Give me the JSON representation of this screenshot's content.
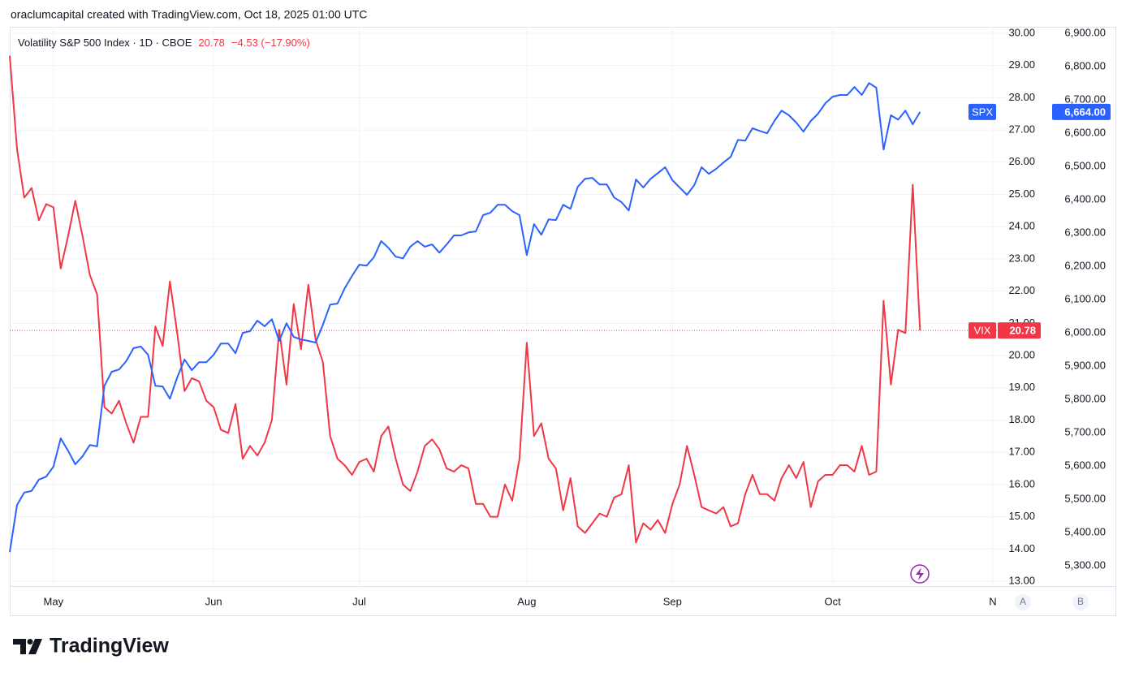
{
  "caption": "oraclumcapital created with TradingView.com, Oct 18, 2025 01:00 UTC",
  "branding": "TradingView",
  "scale_buttons": [
    "A",
    "B"
  ],
  "chart_data": {
    "type": "line",
    "title": "Volatility S&P 500 Index · 1D · CBOE",
    "subtitle": "−4.53 (−17.90%)",
    "categories": [
      null,
      null,
      null,
      null,
      null,
      null,
      "May",
      null,
      null,
      null,
      null,
      null,
      null,
      null,
      null,
      null,
      null,
      null,
      null,
      null,
      null,
      null,
      null,
      null,
      null,
      null,
      null,
      null,
      "Jun",
      null,
      null,
      null,
      null,
      null,
      null,
      null,
      null,
      null,
      null,
      null,
      null,
      null,
      null,
      null,
      null,
      null,
      null,
      null,
      "Jul",
      null,
      null,
      null,
      null,
      null,
      null,
      null,
      null,
      null,
      null,
      null,
      null,
      null,
      null,
      null,
      null,
      null,
      null,
      null,
      null,
      null,
      null,
      "Aug",
      null,
      null,
      null,
      null,
      null,
      null,
      null,
      null,
      null,
      null,
      null,
      null,
      null,
      null,
      null,
      null,
      null,
      null,
      null,
      "Sep",
      null,
      null,
      null,
      null,
      null,
      null,
      null,
      null,
      null,
      null,
      null,
      null,
      null,
      null,
      null,
      null,
      null,
      null,
      null,
      null,
      null,
      "Oct",
      null,
      null,
      null,
      null,
      null,
      null,
      null,
      null,
      null,
      null,
      null,
      null,
      null,
      null,
      null,
      null,
      null,
      null,
      null,
      null,
      null,
      "N"
    ],
    "series": [
      {
        "name": "VIX",
        "color": "#f23645",
        "axis": "y",
        "values": [
          29.3,
          26.4,
          24.9,
          25.2,
          24.2,
          24.7,
          24.6,
          22.7,
          23.7,
          24.8,
          23.7,
          22.5,
          21.9,
          18.4,
          18.2,
          18.6,
          17.9,
          17.3,
          18.1,
          18.1,
          20.9,
          20.3,
          22.3,
          20.7,
          18.9,
          19.3,
          19.2,
          18.6,
          18.4,
          17.7,
          17.6,
          18.5,
          16.8,
          17.2,
          16.9,
          17.3,
          18.0,
          20.8,
          19.1,
          21.6,
          20.2,
          22.2,
          20.5,
          19.8,
          17.5,
          16.8,
          16.6,
          16.3,
          16.7,
          16.8,
          16.4,
          17.5,
          17.8,
          16.8,
          16.0,
          15.8,
          16.4,
          17.2,
          17.4,
          17.1,
          16.5,
          16.4,
          16.6,
          16.5,
          15.4,
          15.4,
          15.0,
          15.0,
          16.0,
          15.5,
          16.8,
          20.4,
          17.5,
          17.9,
          16.8,
          16.5,
          15.2,
          16.2,
          14.7,
          14.5,
          14.8,
          15.1,
          15.0,
          15.6,
          15.7,
          16.6,
          14.2,
          14.8,
          14.6,
          14.9,
          14.5,
          15.4,
          16.0,
          17.2,
          16.3,
          15.3,
          15.2,
          15.1,
          15.3,
          14.7,
          14.8,
          15.7,
          16.3,
          15.7,
          15.7,
          15.5,
          16.2,
          16.6,
          16.2,
          16.7,
          15.3,
          16.1,
          16.3,
          16.3,
          16.6,
          16.6,
          16.4,
          17.2,
          16.3,
          16.4,
          21.7,
          19.1,
          20.8,
          20.7,
          25.3,
          20.78,
          null,
          null,
          null,
          null,
          null,
          null,
          null,
          null,
          null,
          null
        ]
      },
      {
        "name": "SPX",
        "color": "#2962ff",
        "axis": "y2",
        "values": [
          5341,
          5483,
          5520,
          5525,
          5559,
          5568,
          5598,
          5683,
          5646,
          5605,
          5629,
          5663,
          5659,
          5841,
          5883,
          5890,
          5915,
          5954,
          5959,
          5934,
          5841,
          5839,
          5802,
          5866,
          5920,
          5888,
          5912,
          5912,
          5934,
          5968,
          5968,
          5939,
          6000,
          6005,
          6037,
          6020,
          6041,
          5976,
          6029,
          5988,
          5980,
          5976,
          5971,
          6024,
          6085,
          6088,
          6134,
          6171,
          6205,
          6202,
          6227,
          6276,
          6256,
          6229,
          6224,
          6259,
          6276,
          6259,
          6266,
          6241,
          6266,
          6293,
          6293,
          6302,
          6305,
          6354,
          6361,
          6385,
          6385,
          6366,
          6354,
          6234,
          6327,
          6295,
          6341,
          6339,
          6385,
          6373,
          6439,
          6463,
          6466,
          6446,
          6446,
          6407,
          6393,
          6368,
          6461,
          6437,
          6463,
          6480,
          6498,
          6459,
          6437,
          6415,
          6444,
          6498,
          6478,
          6493,
          6512,
          6529,
          6580,
          6578,
          6615,
          6607,
          6600,
          6637,
          6668,
          6654,
          6632,
          6605,
          6637,
          6659,
          6690,
          6710,
          6715,
          6715,
          6739,
          6715,
          6751,
          6737,
          6551,
          6654,
          6641,
          6668,
          6627,
          6664,
          null,
          null,
          null,
          null,
          null,
          null,
          null,
          null,
          null,
          null
        ],
        "value_labels": [
          null,
          null,
          null,
          null,
          null,
          null,
          null,
          null,
          null,
          null,
          null,
          null,
          null,
          null,
          null,
          null,
          null,
          null,
          null,
          null,
          null,
          null,
          null,
          null,
          null,
          null,
          null,
          null,
          null,
          null,
          null,
          null,
          null,
          null,
          null,
          null,
          null,
          null,
          null,
          null,
          null,
          null,
          null,
          null,
          null,
          null,
          null,
          null,
          null,
          null,
          null,
          null,
          null,
          null,
          null,
          null,
          null,
          null,
          null,
          null,
          null,
          null,
          null,
          null,
          null,
          null,
          null,
          null,
          null,
          null,
          null,
          null,
          null,
          null,
          null,
          null,
          null,
          null,
          null,
          null,
          null,
          null,
          null,
          null,
          null,
          null,
          null,
          null,
          null,
          null,
          null,
          null,
          null,
          null,
          null,
          null,
          null,
          null,
          null,
          null,
          null,
          null,
          null,
          null,
          null,
          null,
          null,
          null,
          null,
          null,
          null,
          null,
          null,
          null,
          null,
          null,
          null,
          null,
          null,
          null,
          null,
          null,
          null,
          null,
          null,
          "6,664.00",
          null,
          null,
          null,
          null,
          null,
          null,
          null,
          null,
          null,
          null
        ]
      }
    ],
    "ylim": [
      12.85,
      30.2
    ],
    "yticks": [
      {
        "value": 13,
        "label": "13.00"
      },
      {
        "value": 14,
        "label": "14.00"
      },
      {
        "value": 15,
        "label": "15.00"
      },
      {
        "value": 16,
        "label": "16.00"
      },
      {
        "value": 17,
        "label": "17.00"
      },
      {
        "value": 18,
        "label": "18.00"
      },
      {
        "value": 19,
        "label": "19.00"
      },
      {
        "value": 20,
        "label": "20.00"
      },
      {
        "value": 21,
        "label": "21.00"
      },
      {
        "value": 22,
        "label": "22.00"
      },
      {
        "value": 23,
        "label": "23.00"
      },
      {
        "value": 24,
        "label": "24.00"
      },
      {
        "value": 25,
        "label": "25.00"
      },
      {
        "value": 26,
        "label": "26.00"
      },
      {
        "value": 27,
        "label": "27.00"
      },
      {
        "value": 28,
        "label": "28.00"
      },
      {
        "value": 29,
        "label": "29.00"
      },
      {
        "value": 30,
        "label": "30.00"
      }
    ],
    "y2lim": [
      5239,
      6920
    ],
    "y2ticks": [
      {
        "value": 5300,
        "label": "5,300.00"
      },
      {
        "value": 5400,
        "label": "5,400.00"
      },
      {
        "value": 5500,
        "label": "5,500.00"
      },
      {
        "value": 5600,
        "label": "5,600.00"
      },
      {
        "value": 5700,
        "label": "5,700.00"
      },
      {
        "value": 5800,
        "label": "5,800.00"
      },
      {
        "value": 5900,
        "label": "5,900.00"
      },
      {
        "value": 6000,
        "label": "6,000.00"
      },
      {
        "value": 6100,
        "label": "6,100.00"
      },
      {
        "value": 6200,
        "label": "6,200.00"
      },
      {
        "value": 6300,
        "label": "6,300.00"
      },
      {
        "value": 6400,
        "label": "6,400.00"
      },
      {
        "value": 6500,
        "label": "6,500.00"
      },
      {
        "value": 6600,
        "label": "6,600.00"
      },
      {
        "value": 6700,
        "label": "6,700.00"
      },
      {
        "value": 6800,
        "label": "6,800.00"
      },
      {
        "value": 6900,
        "label": "6,900.00"
      }
    ],
    "grid": true
  }
}
